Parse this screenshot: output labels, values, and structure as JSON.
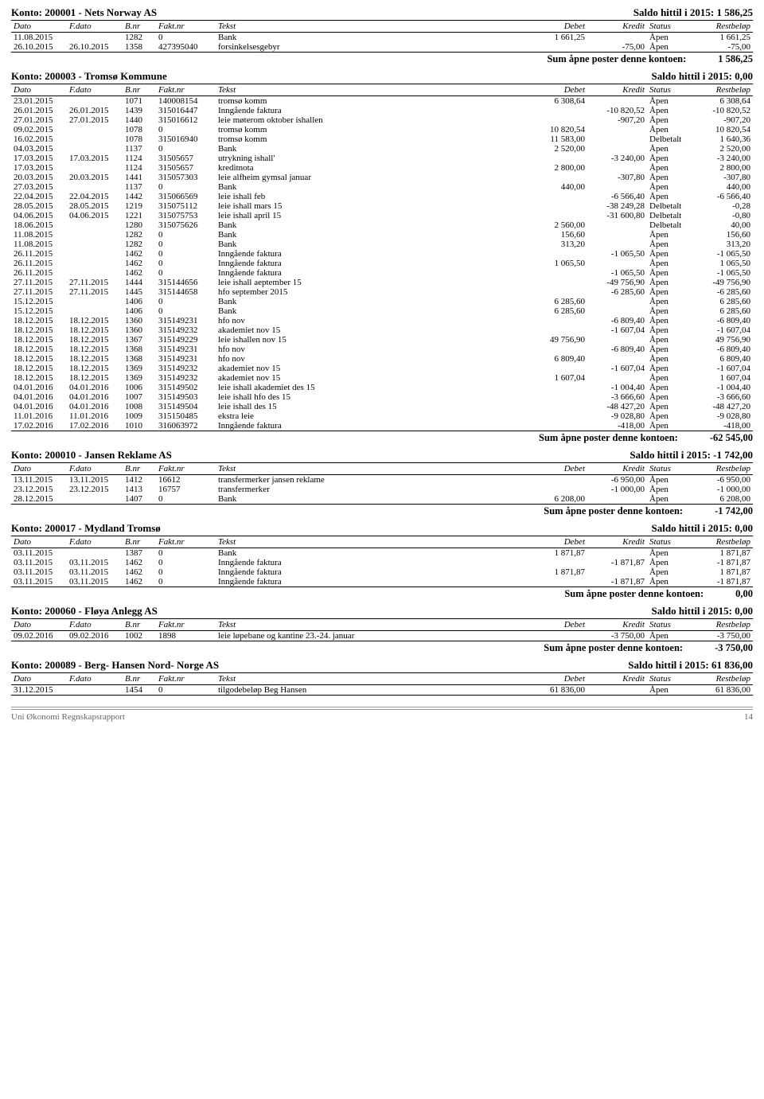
{
  "columns": [
    "Dato",
    "F.dato",
    "B.nr",
    "Fakt.nr",
    "Tekst",
    "Debet",
    "Kredit",
    "Status",
    "Restbeløp"
  ],
  "sum_label": "Sum åpne poster denne kontoen:",
  "footer": {
    "left": "Uni Økonomi Regnskapsrapport",
    "page": "14"
  },
  "accounts": [
    {
      "title": "Konto: 200001 - Nets Norway AS",
      "saldo": "Saldo hittil i 2015: 1 586,25",
      "rows": [
        [
          "11.08.2015",
          "",
          "1282",
          "0",
          "Bank",
          "1 661,25",
          "",
          "Åpen",
          "1 661,25"
        ],
        [
          "26.10.2015",
          "26.10.2015",
          "1358",
          "427395040",
          "forsinkelsesgebyr",
          "",
          "-75,00",
          "Åpen",
          "-75,00"
        ]
      ],
      "sum": "1 586,25"
    },
    {
      "title": "Konto: 200003 - Tromsø Kommune",
      "saldo": "Saldo hittil i 2015: 0,00",
      "rows": [
        [
          "23.01.2015",
          "",
          "1071",
          "140008154",
          "tromsø komm",
          "6 308,64",
          "",
          "Åpen",
          "6 308,64"
        ],
        [
          "26.01.2015",
          "26.01.2015",
          "1439",
          "315016447",
          "Inngående faktura",
          "",
          "-10 820,52",
          "Åpen",
          "-10 820,52"
        ],
        [
          "27.01.2015",
          "27.01.2015",
          "1440",
          "315016612",
          "leie møterom oktober ishallen",
          "",
          "-907,20",
          "Åpen",
          "-907,20"
        ],
        [
          "09.02.2015",
          "",
          "1078",
          "0",
          "tromsø komm",
          "10 820,54",
          "",
          "Åpen",
          "10 820,54"
        ],
        [
          "16.02.2015",
          "",
          "1078",
          "315016940",
          "tromsø komm",
          "11 583,00",
          "",
          "Delbetalt",
          "1 640,36"
        ],
        [
          "04.03.2015",
          "",
          "1137",
          "0",
          "Bank",
          "2 520,00",
          "",
          "Åpen",
          "2 520,00"
        ],
        [
          "17.03.2015",
          "17.03.2015",
          "1124",
          "31505657",
          "utrykning ishall'",
          "",
          "-3 240,00",
          "Åpen",
          "-3 240,00"
        ],
        [
          "17.03.2015",
          "",
          "1124",
          "31505657",
          "kreditnota",
          "2 800,00",
          "",
          "Åpen",
          "2 800,00"
        ],
        [
          "20.03.2015",
          "20.03.2015",
          "1441",
          "315057303",
          "leie alfheim gymsal januar",
          "",
          "-307,80",
          "Åpen",
          "-307,80"
        ],
        [
          "27.03.2015",
          "",
          "1137",
          "0",
          "Bank",
          "440,00",
          "",
          "Åpen",
          "440,00"
        ],
        [
          "22.04.2015",
          "22.04.2015",
          "1442",
          "315066569",
          "leie ishall feb",
          "",
          "-6 566,40",
          "Åpen",
          "-6 566,40"
        ],
        [
          "28.05.2015",
          "28.05.2015",
          "1219",
          "315075112",
          "leie ishall mars 15",
          "",
          "-38 249,28",
          "Delbetalt",
          "-0,28"
        ],
        [
          "04.06.2015",
          "04.06.2015",
          "1221",
          "315075753",
          "leie ishall april 15",
          "",
          "-31 600,80",
          "Delbetalt",
          "-0,80"
        ],
        [
          "18.06.2015",
          "",
          "1280",
          "315075626",
          "Bank",
          "2 560,00",
          "",
          "Delbetalt",
          "40,00"
        ],
        [
          "11.08.2015",
          "",
          "1282",
          "0",
          "Bank",
          "156,60",
          "",
          "Åpen",
          "156,60"
        ],
        [
          "11.08.2015",
          "",
          "1282",
          "0",
          "Bank",
          "313,20",
          "",
          "Åpen",
          "313,20"
        ],
        [
          "26.11.2015",
          "",
          "1462",
          "0",
          "Inngående faktura",
          "",
          "-1 065,50",
          "Åpen",
          "-1 065,50"
        ],
        [
          "26.11.2015",
          "",
          "1462",
          "0",
          "Inngående faktura",
          "1 065,50",
          "",
          "Åpen",
          "1 065,50"
        ],
        [
          "26.11.2015",
          "",
          "1462",
          "0",
          "Inngående faktura",
          "",
          "-1 065,50",
          "Åpen",
          "-1 065,50"
        ],
        [
          "27.11.2015",
          "27.11.2015",
          "1444",
          "315144656",
          "leie ishall aeptember 15",
          "",
          "-49 756,90",
          "Åpen",
          "-49 756,90"
        ],
        [
          "27.11.2015",
          "27.11.2015",
          "1445",
          "315144658",
          "hfo september 2015",
          "",
          "-6 285,60",
          "Åpen",
          "-6 285,60"
        ],
        [
          "15.12.2015",
          "",
          "1406",
          "0",
          "Bank",
          "6 285,60",
          "",
          "Åpen",
          "6 285,60"
        ],
        [
          "15.12.2015",
          "",
          "1406",
          "0",
          "Bank",
          "6 285,60",
          "",
          "Åpen",
          "6 285,60"
        ],
        [
          "18.12.2015",
          "18.12.2015",
          "1360",
          "315149231",
          "hfo  nov",
          "",
          "-6 809,40",
          "Åpen",
          "-6 809,40"
        ],
        [
          "18.12.2015",
          "18.12.2015",
          "1360",
          "315149232",
          "akademiet nov 15",
          "",
          "-1 607,04",
          "Åpen",
          "-1 607,04"
        ],
        [
          "18.12.2015",
          "18.12.2015",
          "1367",
          "315149229",
          "leie ishallen nov 15",
          "49 756,90",
          "",
          "Åpen",
          "49 756,90"
        ],
        [
          "18.12.2015",
          "18.12.2015",
          "1368",
          "315149231",
          "hfo  nov",
          "",
          "-6 809,40",
          "Åpen",
          "-6 809,40"
        ],
        [
          "18.12.2015",
          "18.12.2015",
          "1368",
          "315149231",
          "hfo  nov",
          "6 809,40",
          "",
          "Åpen",
          "6 809,40"
        ],
        [
          "18.12.2015",
          "18.12.2015",
          "1369",
          "315149232",
          "akademiet nov 15",
          "",
          "-1 607,04",
          "Åpen",
          "-1 607,04"
        ],
        [
          "18.12.2015",
          "18.12.2015",
          "1369",
          "315149232",
          "akademiet nov 15",
          "1 607,04",
          "",
          "Åpen",
          "1 607,04"
        ],
        [
          "04.01.2016",
          "04.01.2016",
          "1006",
          "315149502",
          "leie ishall akademiet des 15",
          "",
          "-1 004,40",
          "Åpen",
          "-1 004,40"
        ],
        [
          "04.01.2016",
          "04.01.2016",
          "1007",
          "315149503",
          "leie ishall hfo des 15",
          "",
          "-3 666,60",
          "Åpen",
          "-3 666,60"
        ],
        [
          "04.01.2016",
          "04.01.2016",
          "1008",
          "315149504",
          "leie ishall des 15",
          "",
          "-48 427,20",
          "Åpen",
          "-48 427,20"
        ],
        [
          "11.01.2016",
          "11.01.2016",
          "1009",
          "315150485",
          "ekstra leie",
          "",
          "-9 028,80",
          "Åpen",
          "-9 028,80"
        ],
        [
          "17.02.2016",
          "17.02.2016",
          "1010",
          "316063972",
          "Inngående faktura",
          "",
          "-418,00",
          "Åpen",
          "-418,00"
        ]
      ],
      "sum": "-62 545,00"
    },
    {
      "title": "Konto: 200010 - Jansen Reklame AS",
      "saldo": "Saldo hittil i 2015: -1 742,00",
      "rows": [
        [
          "13.11.2015",
          "13.11.2015",
          "1412",
          "16612",
          "transfermerker jansen reklame",
          "",
          "-6 950,00",
          "Åpen",
          "-6 950,00"
        ],
        [
          "23.12.2015",
          "23.12.2015",
          "1413",
          "16757",
          "transfermerker",
          "",
          "-1 000,00",
          "Åpen",
          "-1 000,00"
        ],
        [
          "28.12.2015",
          "",
          "1407",
          "0",
          "Bank",
          "6 208,00",
          "",
          "Åpen",
          "6 208,00"
        ]
      ],
      "sum": "-1 742,00"
    },
    {
      "title": "Konto: 200017 - Mydland Tromsø",
      "saldo": "Saldo hittil i 2015: 0,00",
      "rows": [
        [
          "03.11.2015",
          "",
          "1387",
          "0",
          "Bank",
          "1 871,87",
          "",
          "Åpen",
          "1 871,87"
        ],
        [
          "03.11.2015",
          "03.11.2015",
          "1462",
          "0",
          "Inngående faktura",
          "",
          "-1 871,87",
          "Åpen",
          "-1 871,87"
        ],
        [
          "03.11.2015",
          "03.11.2015",
          "1462",
          "0",
          "Inngående faktura",
          "1 871,87",
          "",
          "Åpen",
          "1 871,87"
        ],
        [
          "03.11.2015",
          "03.11.2015",
          "1462",
          "0",
          "Inngående faktura",
          "",
          "-1 871,87",
          "Åpen",
          "-1 871,87"
        ]
      ],
      "sum": "0,00"
    },
    {
      "title": "Konto: 200060 - Fløya Anlegg AS",
      "saldo": "Saldo hittil i 2015: 0,00",
      "rows": [
        [
          "09.02.2016",
          "09.02.2016",
          "1002",
          "1898",
          "leie løpebane og kantine 23.-24. januar",
          "",
          "-3 750,00",
          "Åpen",
          "-3 750,00"
        ]
      ],
      "sum": "-3 750,00"
    },
    {
      "title": "Konto: 200089 - Berg- Hansen Nord- Norge AS",
      "saldo": "Saldo hittil i 2015: 61 836,00",
      "rows": [
        [
          "31.12.2015",
          "",
          "1454",
          "0",
          "tilgodebeløp Beg Hansen",
          "61 836,00",
          "",
          "Åpen",
          "61 836,00"
        ]
      ],
      "sum": null
    }
  ]
}
